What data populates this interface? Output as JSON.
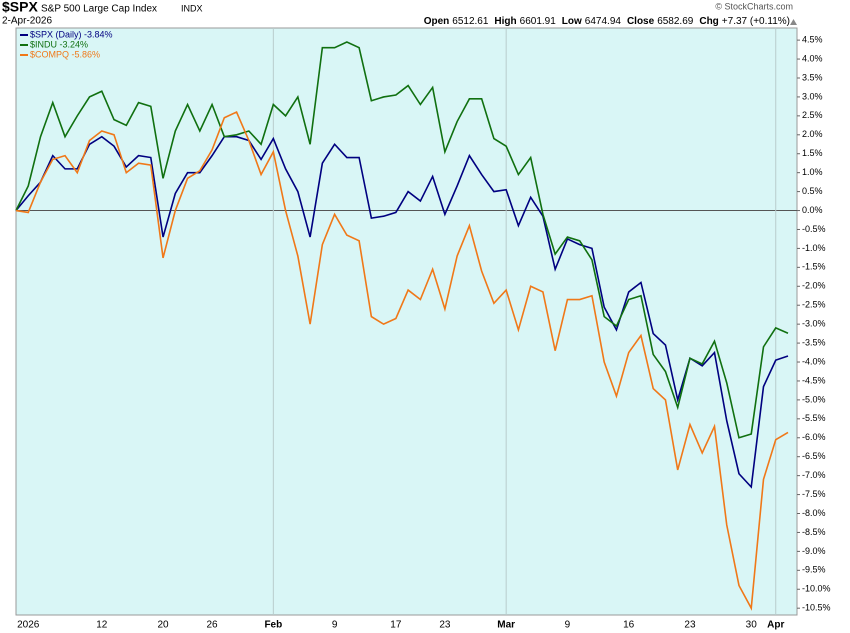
{
  "header": {
    "symbol": "$SPX",
    "name": "S&P 500 Large Cap Index",
    "exchange": "INDX",
    "date": "2-Apr-2026",
    "open_label": "Open",
    "open": "6512.61",
    "high_label": "High",
    "high": "6601.91",
    "low_label": "Low",
    "low": "6474.94",
    "close_label": "Close",
    "close": "6582.69",
    "chg_label": "Chg",
    "chg": "+7.37 (+0.11%)",
    "credit": "© StockCharts.com"
  },
  "chart_data": {
    "type": "line",
    "categories": [
      null,
      "2026",
      null,
      null,
      null,
      null,
      null,
      "12",
      null,
      null,
      null,
      null,
      "20",
      null,
      null,
      null,
      "26",
      null,
      null,
      null,
      null,
      "Feb",
      null,
      null,
      null,
      null,
      "9",
      null,
      null,
      null,
      null,
      "17",
      null,
      null,
      null,
      "23",
      null,
      null,
      null,
      null,
      "Mar",
      null,
      null,
      null,
      null,
      "9",
      null,
      null,
      null,
      null,
      "16",
      null,
      null,
      null,
      null,
      "23",
      null,
      null,
      null,
      null,
      "30",
      null,
      "Apr",
      null
    ],
    "series": [
      {
        "name": "$SPX (Daily) -3.84%",
        "color": "#000080",
        "values": [
          0,
          0.39,
          0.75,
          1.45,
          1.1,
          1.1,
          1.75,
          1.95,
          1.7,
          1.15,
          1.45,
          1.4,
          -0.7,
          0.45,
          1.0,
          1.0,
          1.45,
          1.95,
          1.95,
          1.85,
          1.35,
          1.9,
          1.1,
          0.5,
          -0.7,
          1.25,
          1.75,
          1.4,
          1.4,
          -0.2,
          -0.15,
          -0.05,
          0.5,
          0.25,
          0.9,
          -0.1,
          0.65,
          1.45,
          0.95,
          0.5,
          0.55,
          -0.4,
          0.35,
          -0.15,
          -1.55,
          -0.75,
          -0.9,
          -1.0,
          -2.55,
          -3.15,
          -2.15,
          -1.9,
          -3.25,
          -3.55,
          -5.0,
          -3.9,
          -4.1,
          -3.75,
          -5.55,
          -6.95,
          -7.3,
          -4.65,
          -3.95,
          -3.84
        ]
      },
      {
        "name": "$INDU -3.24%",
        "color": "#107010",
        "values": [
          0,
          0.65,
          1.95,
          2.85,
          1.95,
          2.5,
          3.0,
          3.15,
          2.4,
          2.25,
          2.85,
          2.75,
          0.85,
          2.1,
          2.8,
          2.1,
          2.8,
          1.95,
          2.0,
          2.1,
          1.75,
          2.8,
          2.5,
          3.0,
          1.75,
          4.3,
          4.3,
          4.45,
          4.3,
          2.9,
          3.0,
          3.05,
          3.3,
          2.8,
          3.25,
          1.55,
          2.35,
          2.95,
          2.95,
          1.9,
          1.7,
          0.95,
          1.4,
          -0.1,
          -1.15,
          -0.7,
          -0.8,
          -1.3,
          -2.8,
          -3.05,
          -2.35,
          -2.25,
          -3.8,
          -4.25,
          -5.2,
          -3.9,
          -4.05,
          -3.45,
          -4.55,
          -6.0,
          -5.9,
          -3.6,
          -3.1,
          -3.24
        ]
      },
      {
        "name": "$COMPQ -5.86%",
        "color": "#f07818",
        "values": [
          0,
          -0.05,
          0.75,
          1.35,
          1.45,
          1.0,
          1.85,
          2.1,
          2.0,
          1.0,
          1.25,
          1.2,
          -1.25,
          0.0,
          0.85,
          1.05,
          1.6,
          2.45,
          2.6,
          1.85,
          0.95,
          1.55,
          0.0,
          -1.2,
          -3.0,
          -0.9,
          -0.1,
          -0.65,
          -0.8,
          -2.8,
          -3.0,
          -2.85,
          -2.1,
          -2.35,
          -1.55,
          -2.6,
          -1.2,
          -0.4,
          -1.6,
          -2.45,
          -2.1,
          -3.15,
          -2.0,
          -2.15,
          -3.7,
          -2.35,
          -2.35,
          -2.25,
          -4.0,
          -4.9,
          -3.75,
          -3.3,
          -4.7,
          -5.0,
          -6.85,
          -5.65,
          -6.4,
          -5.7,
          -8.3,
          -9.9,
          -10.5,
          -7.1,
          -6.05,
          -5.86
        ]
      }
    ],
    "ylim": [
      -10.68,
      4.82
    ],
    "yticks": [
      {
        "value": 4.5,
        "label": "4.5%"
      },
      {
        "value": 4.0,
        "label": "4.0%"
      },
      {
        "value": 3.5,
        "label": "3.5%"
      },
      {
        "value": 3.0,
        "label": "3.0%"
      },
      {
        "value": 2.5,
        "label": "2.5%"
      },
      {
        "value": 2.0,
        "label": "2.0%"
      },
      {
        "value": 1.5,
        "label": "1.5%"
      },
      {
        "value": 1.0,
        "label": "1.0%"
      },
      {
        "value": 0.5,
        "label": "0.5%"
      },
      {
        "value": 0,
        "label": "0.0%"
      },
      {
        "value": -0.5,
        "label": "-0.5%"
      },
      {
        "value": -1.0,
        "label": "-1.0%"
      },
      {
        "value": -1.5,
        "label": "-1.5%"
      },
      {
        "value": -2.0,
        "label": "-2.0%"
      },
      {
        "value": -2.5,
        "label": "-2.5%"
      },
      {
        "value": -3.0,
        "label": "-3.0%"
      },
      {
        "value": -3.5,
        "label": "-3.5%"
      },
      {
        "value": -4.0,
        "label": "-4.0%"
      },
      {
        "value": -4.5,
        "label": "-4.5%"
      },
      {
        "value": -5.0,
        "label": "-5.0%"
      },
      {
        "value": -5.5,
        "label": "-5.5%"
      },
      {
        "value": -6.0,
        "label": "-6.0%"
      },
      {
        "value": -6.5,
        "label": "-6.5%"
      },
      {
        "value": -7.0,
        "label": "-7.0%"
      },
      {
        "value": -7.5,
        "label": "-7.5%"
      },
      {
        "value": -8.0,
        "label": "-8.0%"
      },
      {
        "value": -8.5,
        "label": "-8.5%"
      },
      {
        "value": -9.0,
        "label": "-9.0%"
      },
      {
        "value": -9.5,
        "label": "-9.5%"
      },
      {
        "value": -10.0,
        "label": "-10.0%"
      },
      {
        "value": -10.5,
        "label": "-10.5%"
      }
    ],
    "legend": "upper left"
  }
}
